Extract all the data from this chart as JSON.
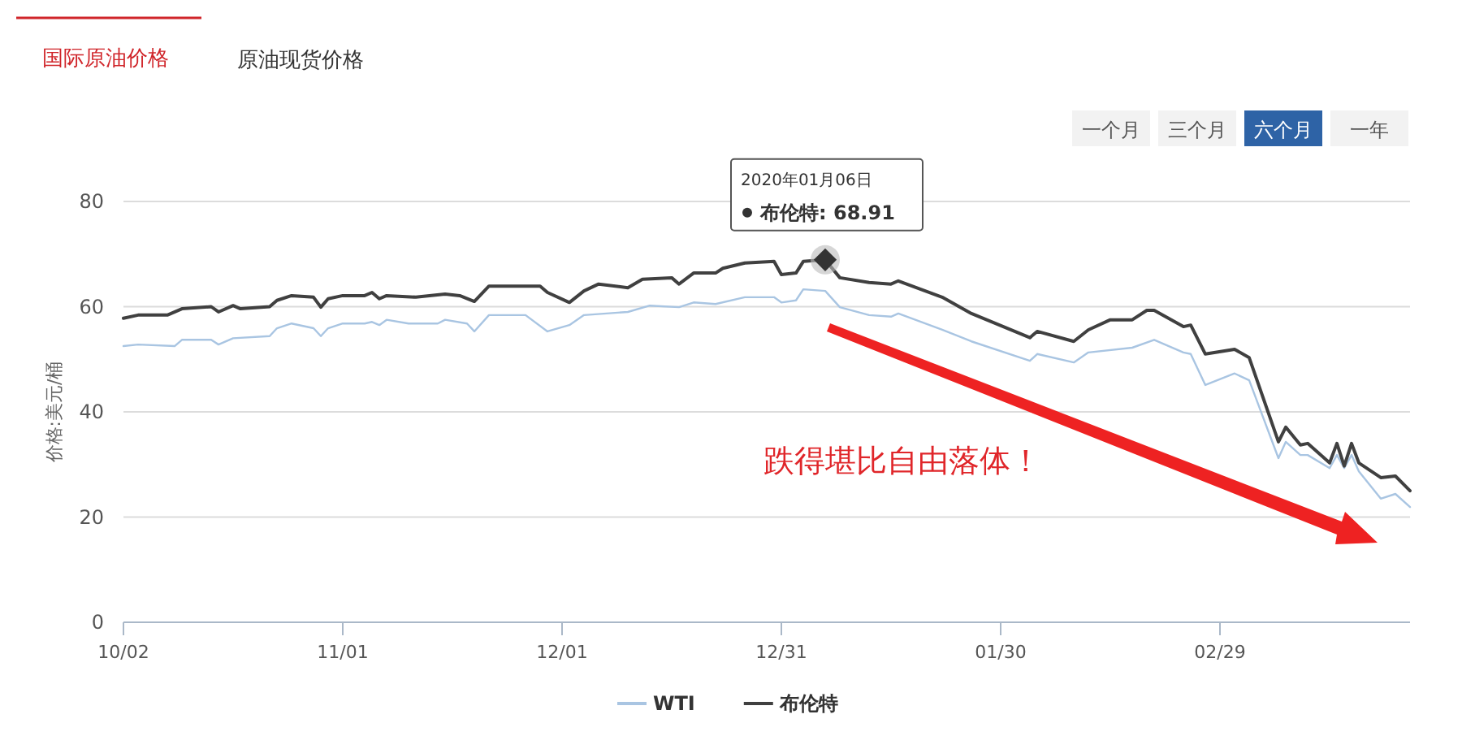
{
  "chart_data": {
    "type": "line",
    "ylabel": "价格:美元/桶",
    "xlim": [
      "2019-10-02",
      "2020-03-26"
    ],
    "ylim": [
      0,
      80
    ],
    "yticks": [
      0,
      20,
      40,
      60,
      80
    ],
    "xticks": [
      {
        "value": "2019-10-02",
        "label": "10/02"
      },
      {
        "value": "2019-11-01",
        "label": "11/01"
      },
      {
        "value": "2019-12-01",
        "label": "12/01"
      },
      {
        "value": "2019-12-31",
        "label": "12/31"
      },
      {
        "value": "2020-01-30",
        "label": "01/30"
      },
      {
        "value": "2020-02-29",
        "label": "02/29"
      }
    ],
    "grid": "y",
    "legend": "bottom",
    "marker": "none",
    "line_style": "solid",
    "annotations": [
      "国际原油价格",
      "原油现货价格",
      "一个月",
      "三个月",
      "六个月",
      "一年",
      "2020年01月06日",
      "布伦特: 68.91",
      "跌得堪比自由落体！"
    ],
    "series": [
      {
        "name": "WTI",
        "color": "#a9c5e2",
        "x": [
          "2019-10-02",
          "2019-10-04",
          "2019-10-09",
          "2019-10-10",
          "2019-10-14",
          "2019-10-15",
          "2019-10-17",
          "2019-10-22",
          "2019-10-23",
          "2019-10-25",
          "2019-10-28",
          "2019-10-29",
          "2019-10-30",
          "2019-11-01",
          "2019-11-04",
          "2019-11-05",
          "2019-11-06",
          "2019-11-07",
          "2019-11-10",
          "2019-11-14",
          "2019-11-15",
          "2019-11-18",
          "2019-11-19",
          "2019-11-21",
          "2019-11-26",
          "2019-11-29",
          "2019-12-02",
          "2019-12-04",
          "2019-12-10",
          "2019-12-13",
          "2019-12-17",
          "2019-12-19",
          "2019-12-22",
          "2019-12-26",
          "2019-12-30",
          "2019-12-31",
          "2020-01-02",
          "2020-01-03",
          "2020-01-06",
          "2020-01-08",
          "2020-01-12",
          "2020-01-15",
          "2020-01-16",
          "2020-01-22",
          "2020-01-26",
          "2020-02-03",
          "2020-02-04",
          "2020-02-09",
          "2020-02-11",
          "2020-02-17",
          "2020-02-20",
          "2020-02-24",
          "2020-02-25",
          "2020-02-27",
          "2020-03-02",
          "2020-03-04",
          "2020-03-08",
          "2020-03-09",
          "2020-03-11",
          "2020-03-12",
          "2020-03-15",
          "2020-03-16",
          "2020-03-17",
          "2020-03-18",
          "2020-03-19",
          "2020-03-22",
          "2020-03-24",
          "2020-03-26"
        ],
        "values": [
          52.5,
          52.8,
          52.5,
          53.7,
          53.7,
          52.8,
          54.0,
          54.4,
          55.9,
          56.8,
          55.9,
          54.4,
          55.9,
          56.8,
          56.8,
          57.1,
          56.5,
          57.5,
          56.8,
          56.8,
          57.5,
          56.8,
          55.3,
          58.4,
          58.4,
          55.3,
          56.5,
          58.4,
          59.0,
          60.2,
          59.9,
          60.8,
          60.5,
          61.8,
          61.8,
          60.8,
          61.2,
          63.3,
          63.0,
          59.9,
          58.4,
          58.1,
          58.7,
          55.6,
          53.4,
          49.7,
          51.0,
          49.4,
          51.3,
          52.2,
          53.7,
          51.3,
          51.0,
          45.1,
          47.3,
          46.0,
          31.2,
          34.3,
          31.8,
          31.8,
          29.3,
          31.8,
          29.3,
          31.8,
          28.7,
          23.5,
          24.4,
          21.9
        ]
      },
      {
        "name": "布伦特",
        "color": "#404040",
        "x": [
          "2019-10-02",
          "2019-10-04",
          "2019-10-08",
          "2019-10-10",
          "2019-10-14",
          "2019-10-15",
          "2019-10-17",
          "2019-10-18",
          "2019-10-22",
          "2019-10-23",
          "2019-10-25",
          "2019-10-28",
          "2019-10-29",
          "2019-10-30",
          "2019-11-01",
          "2019-11-04",
          "2019-11-05",
          "2019-11-06",
          "2019-11-07",
          "2019-11-11",
          "2019-11-15",
          "2019-11-17",
          "2019-11-19",
          "2019-11-21",
          "2019-11-25",
          "2019-11-28",
          "2019-11-29",
          "2019-12-02",
          "2019-12-04",
          "2019-12-06",
          "2019-12-10",
          "2019-12-12",
          "2019-12-16",
          "2019-12-17",
          "2019-12-19",
          "2019-12-22",
          "2019-12-23",
          "2019-12-26",
          "2019-12-30",
          "2019-12-31",
          "2020-01-02",
          "2020-01-03",
          "2020-01-06",
          "2020-01-08",
          "2020-01-12",
          "2020-01-15",
          "2020-01-16",
          "2020-01-22",
          "2020-01-26",
          "2020-02-03",
          "2020-02-04",
          "2020-02-09",
          "2020-02-11",
          "2020-02-14",
          "2020-02-17",
          "2020-02-19",
          "2020-02-20",
          "2020-02-24",
          "2020-02-25",
          "2020-02-27",
          "2020-03-02",
          "2020-03-04",
          "2020-03-08",
          "2020-03-09",
          "2020-03-11",
          "2020-03-12",
          "2020-03-15",
          "2020-03-16",
          "2020-03-17",
          "2020-03-18",
          "2020-03-19",
          "2020-03-22",
          "2020-03-24",
          "2020-03-26"
        ],
        "values": [
          57.8,
          58.4,
          58.4,
          59.6,
          60.0,
          59.0,
          60.2,
          59.6,
          60.0,
          61.2,
          62.1,
          61.8,
          59.9,
          61.5,
          62.1,
          62.1,
          62.7,
          61.5,
          62.1,
          61.8,
          62.4,
          62.1,
          61.0,
          63.9,
          63.9,
          63.9,
          62.7,
          60.8,
          63.0,
          64.3,
          63.6,
          65.2,
          65.5,
          64.3,
          66.4,
          66.4,
          67.3,
          68.3,
          68.6,
          66.1,
          66.4,
          68.6,
          68.91,
          65.5,
          64.6,
          64.3,
          64.9,
          61.8,
          58.7,
          54.1,
          55.3,
          53.4,
          55.6,
          57.5,
          57.5,
          59.3,
          59.3,
          56.2,
          56.5,
          51.0,
          51.9,
          50.3,
          34.3,
          37.1,
          33.7,
          34.0,
          30.3,
          34.0,
          29.7,
          34.0,
          30.3,
          27.5,
          27.8,
          25.0
        ]
      }
    ]
  }
}
